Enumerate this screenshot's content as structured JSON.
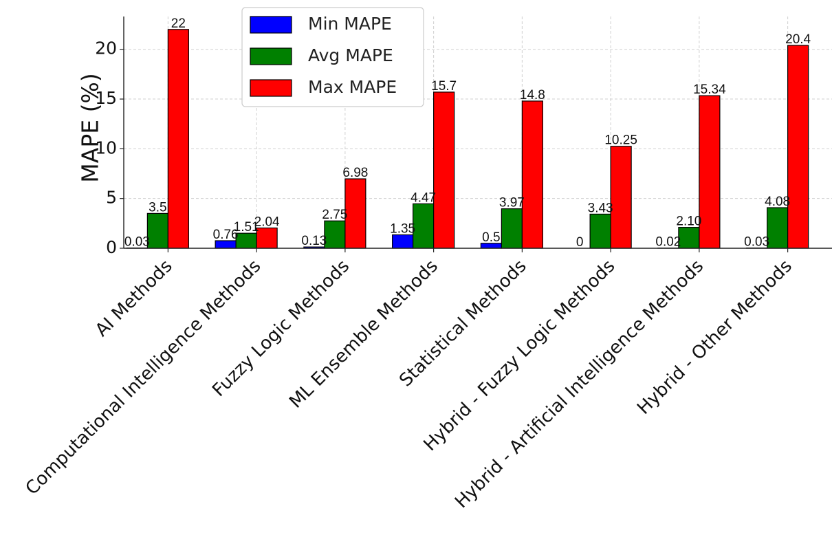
{
  "chart_data": {
    "type": "bar",
    "categories": [
      "AI Methods",
      "Computational Intelligence Methods",
      "Fuzzy Logic Methods",
      "ML Ensemble Methods",
      "Statistical Methods",
      "Hybrid - Fuzzy Logic Methods",
      "Hybrid - Artificial Intelligence Methods",
      "Hybrid - Other Methods"
    ],
    "series": [
      {
        "name": "Min MAPE",
        "color": "#0000ff",
        "values": [
          0.03,
          0.76,
          0.13,
          1.35,
          0.5,
          0,
          0.02,
          0.03
        ],
        "labels": [
          "0.03",
          "0.76",
          "0.13",
          "1.35",
          "0.5",
          "0",
          "0.02",
          "0.03"
        ]
      },
      {
        "name": "Avg MAPE",
        "color": "#008000",
        "values": [
          3.5,
          1.51,
          2.75,
          4.47,
          3.97,
          3.43,
          2.1,
          4.08
        ],
        "labels": [
          "3.5",
          "1.51",
          "2.75",
          "4.47",
          "3.97",
          "3.43",
          "2.10",
          "4.08"
        ]
      },
      {
        "name": "Max MAPE",
        "color": "#ff0000",
        "values": [
          22,
          2.04,
          6.98,
          15.7,
          14.8,
          10.25,
          15.34,
          20.4
        ],
        "labels": [
          "22",
          "2.04",
          "6.98",
          "15.7",
          "14.8",
          "10.25",
          "15.34",
          "20.4"
        ]
      }
    ],
    "xlabel": "",
    "ylabel": "MAPE (%)",
    "ylim": [
      0,
      23.3
    ],
    "yticks": [
      0,
      5,
      10,
      15,
      20
    ],
    "grid": true,
    "legend_position": "top-center"
  }
}
